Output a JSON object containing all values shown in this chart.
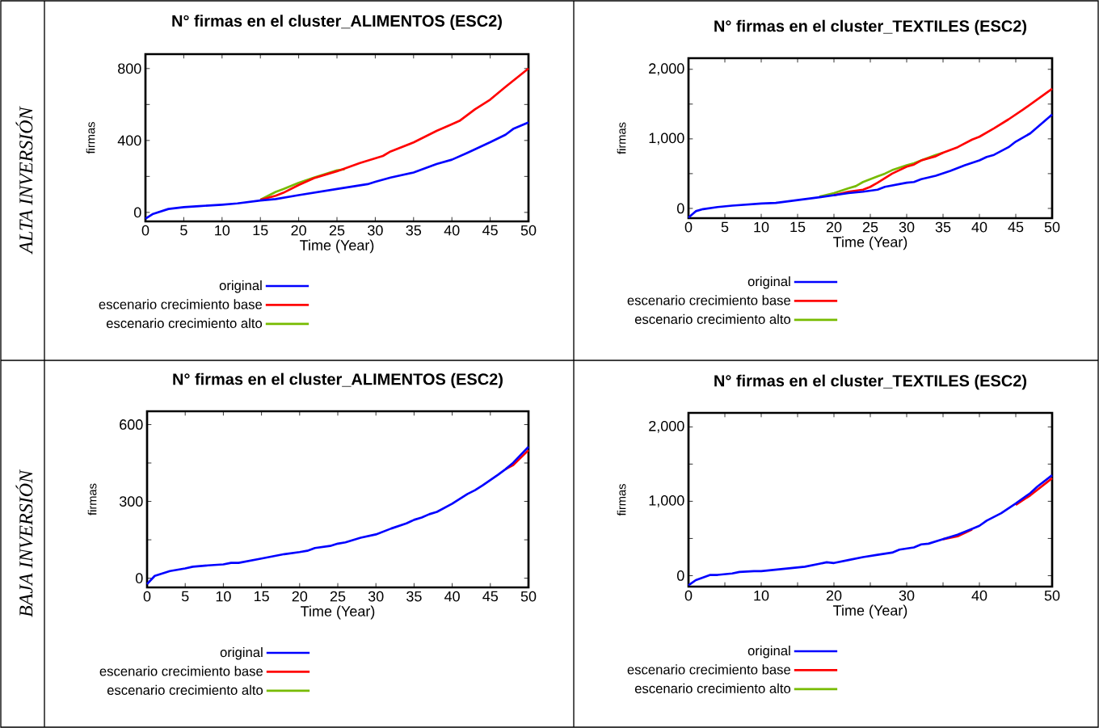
{
  "chart_data": [
    {
      "type": "line",
      "title": "N° firmas en el cluster_ALIMENTOS (ESC2)",
      "xlabel": "Time (Year)",
      "ylabel": "firmas",
      "annotations": [
        "ALTA INVERSIÓN"
      ],
      "legend": "bottom",
      "xlim": [
        0,
        50
      ],
      "ylim": [
        -50,
        880
      ],
      "xticks": [
        0,
        5,
        10,
        15,
        20,
        25,
        30,
        35,
        40,
        45,
        50
      ],
      "yticks": [
        0,
        {
          "value": 200,
          "label": null
        },
        400,
        {
          "value": 600,
          "label": null
        },
        800
      ],
      "series": [
        {
          "name": "original",
          "color": "#0000ff",
          "x": [
            0,
            1,
            3,
            5,
            7,
            10,
            12,
            15,
            17,
            20,
            25,
            29,
            30,
            32,
            35,
            38,
            40,
            42,
            45,
            47,
            48,
            50
          ],
          "values": [
            -35,
            -8,
            19,
            29,
            35,
            43,
            50,
            66,
            74,
            96,
            130,
            157,
            170,
            194,
            222,
            269,
            293,
            331,
            390,
            432,
            464,
            500
          ]
        },
        {
          "name": "escenario crecimiento base",
          "color": "#ff0000",
          "x": [
            15,
            17,
            18,
            20,
            22,
            25,
            28,
            31,
            32,
            35,
            38,
            40,
            41,
            43,
            45,
            47,
            50
          ],
          "values": [
            70,
            93,
            109,
            152,
            190,
            229,
            275,
            314,
            339,
            389,
            453,
            490,
            509,
            573,
            627,
            698,
            800
          ]
        },
        {
          "name": "escenario crecimiento alto",
          "color": "#77bb00",
          "x": [
            15,
            17,
            18,
            20,
            22,
            25,
            26
          ],
          "values": [
            70,
            114,
            130,
            165,
            194,
            234,
            240
          ]
        }
      ]
    },
    {
      "type": "line",
      "title": "N° firmas en el cluster_TEXTILES (ESC2)",
      "xlabel": "Time (Year)",
      "ylabel": "firmas",
      "legend": "bottom",
      "xlim": [
        0,
        50
      ],
      "ylim": [
        -140,
        2160
      ],
      "xticks": [
        0,
        5,
        10,
        15,
        20,
        25,
        30,
        35,
        40,
        45,
        50
      ],
      "yticks": [
        0,
        {
          "value": 500,
          "label": null
        },
        {
          "value": 1000,
          "label": "1,000"
        },
        {
          "value": 1500,
          "label": null
        },
        {
          "value": 2000,
          "label": "2,000"
        }
      ],
      "series": [
        {
          "name": "original",
          "color": "#0000ff",
          "x": [
            0,
            1,
            2,
            4,
            6,
            10,
            12,
            15,
            18,
            20,
            22,
            24,
            26,
            27,
            30,
            31,
            32,
            34,
            36,
            38,
            40,
            41,
            42,
            44,
            45,
            47,
            48,
            50
          ],
          "values": [
            -130,
            -40,
            -10,
            20,
            40,
            70,
            80,
            120,
            160,
            190,
            220,
            240,
            270,
            310,
            370,
            380,
            420,
            470,
            540,
            620,
            690,
            740,
            770,
            880,
            960,
            1080,
            1170,
            1350
          ]
        },
        {
          "name": "escenario crecimiento base",
          "color": "#ff0000",
          "x": [
            20,
            22,
            24,
            25,
            26,
            28,
            30,
            31,
            32,
            34,
            35,
            37,
            39,
            40,
            42,
            44,
            46,
            48,
            50
          ],
          "values": [
            190,
            240,
            270,
            310,
            370,
            500,
            600,
            630,
            690,
            750,
            800,
            880,
            990,
            1030,
            1150,
            1280,
            1420,
            1570,
            1720
          ]
        },
        {
          "name": "escenario crecimiento alto",
          "color": "#77bb00",
          "x": [
            18,
            20,
            22,
            23,
            24,
            25,
            26,
            27,
            28,
            30,
            31,
            32,
            34,
            35
          ],
          "values": [
            170,
            220,
            290,
            320,
            380,
            420,
            460,
            500,
            550,
            620,
            650,
            690,
            770,
            800
          ]
        }
      ]
    },
    {
      "type": "line",
      "title": "N° firmas en el cluster_ALIMENTOS (ESC2)",
      "xlabel": "Time (Year)",
      "ylabel": "firmas",
      "annotations": [
        "BAJA INVERSIÓN"
      ],
      "legend": "bottom",
      "xlim": [
        0,
        50
      ],
      "ylim": [
        -36,
        652
      ],
      "xticks": [
        0,
        5,
        10,
        15,
        20,
        25,
        30,
        35,
        40,
        45,
        50
      ],
      "yticks": [
        0,
        {
          "value": 150,
          "label": null
        },
        300,
        {
          "value": 450,
          "label": null
        },
        600
      ],
      "series": [
        {
          "name": "original",
          "color": "#0000ff",
          "x": [
            0,
            1,
            3,
            5,
            6,
            8,
            10,
            11,
            12,
            15,
            18,
            20,
            21,
            22,
            24,
            25,
            26,
            28,
            30,
            32,
            34,
            35,
            36,
            37,
            38,
            40,
            42,
            43,
            44,
            46,
            47,
            48,
            50
          ],
          "values": [
            -23,
            9,
            28,
            38,
            45,
            50,
            54,
            60,
            60,
            77,
            94,
            102,
            107,
            118,
            126,
            135,
            140,
            158,
            171,
            194,
            214,
            228,
            237,
            250,
            259,
            291,
            329,
            344,
            363,
            404,
            426,
            451,
            513
          ]
        },
        {
          "name": "escenario crecimiento base",
          "color": "#ff0000",
          "x": [
            47,
            48,
            50
          ],
          "values": [
            426,
            442,
            500
          ]
        },
        {
          "name": "escenario crecimiento alto",
          "color": "#77bb00"
        }
      ]
    },
    {
      "type": "line",
      "title": "N° firmas en el cluster_TEXTILES (ESC2)",
      "xlabel": "Time (Year)",
      "ylabel": "firmas",
      "legend": "bottom",
      "xlim": [
        0,
        50
      ],
      "ylim": [
        -147,
        2188
      ],
      "xticks": [
        0,
        {
          "value": 5,
          "label": null
        },
        10,
        {
          "value": 15,
          "label": null
        },
        20,
        {
          "value": 25,
          "label": null
        },
        30,
        {
          "value": 35,
          "label": null
        },
        40,
        {
          "value": 45,
          "label": null
        },
        50
      ],
      "yticks": [
        0,
        {
          "value": 500,
          "label": null
        },
        {
          "value": 1000,
          "label": "1,000"
        },
        {
          "value": 1500,
          "label": null
        },
        {
          "value": 2000,
          "label": "2,000"
        }
      ],
      "series": [
        {
          "name": "original",
          "color": "#0000ff",
          "x": [
            0,
            1,
            3,
            4,
            6,
            7,
            9,
            10,
            12,
            14,
            16,
            18,
            19,
            20,
            22,
            24,
            26,
            28,
            29,
            31,
            32,
            33,
            35,
            37,
            39,
            40,
            41,
            43,
            45,
            47,
            48,
            50
          ],
          "values": [
            -130,
            -60,
            10,
            10,
            30,
            50,
            60,
            60,
            80,
            100,
            120,
            160,
            180,
            170,
            210,
            250,
            280,
            310,
            350,
            380,
            420,
            430,
            490,
            550,
            630,
            670,
            740,
            840,
            970,
            1110,
            1200,
            1350
          ]
        },
        {
          "name": "escenario crecimiento base",
          "color": "#ff0000",
          "x": [
            35,
            37,
            39,
            40,
            45,
            47,
            50
          ],
          "values": [
            490,
            530,
            620,
            null,
            950,
            1080,
            1310
          ]
        },
        {
          "name": "escenario crecimiento alto",
          "color": "#77bb00"
        }
      ]
    }
  ]
}
